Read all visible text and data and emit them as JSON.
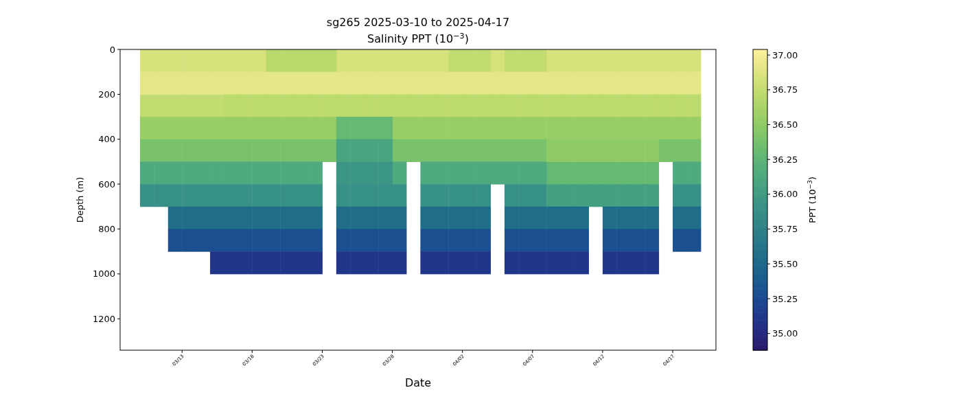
{
  "chart_data": {
    "type": "scatter",
    "title": "sg265 2025-03-10 to 2025-04-17",
    "subtitle": "Salinity PPT (10$^{−3}$)",
    "xlabel": "Date",
    "ylabel": "Depth (m)",
    "clabel": "PPT (10$^{−3}$)",
    "marker": "square",
    "xlim": [
      "2025-03-08T14:00",
      "2025-04-20T02:00"
    ],
    "xticks": [
      {
        "value": "2025-03-13",
        "label": "03/13"
      },
      {
        "value": "2025-03-18",
        "label": "03/18"
      },
      {
        "value": "2025-03-23",
        "label": "03/23"
      },
      {
        "value": "2025-03-28",
        "label": "03/28"
      },
      {
        "value": "2025-04-02",
        "label": "04/02"
      },
      {
        "value": "2025-04-07",
        "label": "04/07"
      },
      {
        "value": "2025-04-12",
        "label": "04/12"
      },
      {
        "value": "2025-04-17",
        "label": "04/17"
      }
    ],
    "ylim": [
      1340,
      0
    ],
    "yticks": [
      0,
      200,
      400,
      600,
      800,
      1000,
      1200
    ],
    "clim": [
      34.88,
      37.04
    ],
    "cticks": [
      {
        "value": 35,
        "label": "35.00"
      },
      35.25,
      {
        "value": 35.5,
        "label": "35.50"
      },
      35.75,
      {
        "value": 36,
        "label": "36.00"
      },
      36.25,
      {
        "value": 36.5,
        "label": "36.50"
      },
      36.75,
      {
        "value": 37,
        "label": "37.00"
      }
    ],
    "series": [
      {
        "x": [
          "2025-03-10T12:00",
          "2025-03-11T12:00",
          "2025-03-12T12:00",
          "2025-03-13T12:00",
          "2025-03-14T12:00",
          "2025-03-15T12:00",
          "2025-03-16T12:00",
          "2025-03-17T12:00",
          "2025-03-18T12:00",
          "2025-03-24T12:00",
          "2025-03-25T12:00",
          "2025-03-26T12:00",
          "2025-03-27T12:00",
          "2025-03-28T12:00",
          "2025-03-29T12:00",
          "2025-03-30T12:00",
          "2025-03-31T12:00",
          "2025-04-04T12:00",
          "2025-04-08T12:00",
          "2025-04-09T12:00",
          "2025-04-10T12:00",
          "2025-04-11T12:00",
          "2025-04-12T12:00",
          "2025-04-13T12:00",
          "2025-04-14T12:00",
          "2025-04-15T12:00",
          "2025-04-16T12:00",
          "2025-04-17T12:00",
          "2025-04-18T12:00"
        ],
        "values": [
          50,
          50,
          50,
          50,
          50,
          50,
          50,
          50,
          50,
          50,
          50,
          50,
          50,
          50,
          50,
          50,
          50,
          50,
          50,
          50,
          50,
          50,
          50,
          50,
          50,
          50,
          50,
          50,
          50
        ],
        "cvalues": [
          36.85,
          36.85,
          36.85,
          36.85,
          36.85,
          36.85,
          36.85,
          36.85,
          36.85,
          36.85,
          36.85,
          36.85,
          36.85,
          36.85,
          36.85,
          36.85,
          36.85,
          36.85,
          36.85,
          36.85,
          36.85,
          36.85,
          36.85,
          36.85,
          36.85,
          36.85,
          36.85,
          36.85,
          36.85
        ]
      },
      {
        "x": [
          "2025-03-19T12:00",
          "2025-03-20T12:00",
          "2025-03-21T12:00",
          "2025-03-22T12:00",
          "2025-03-23T12:00"
        ],
        "values": [
          50,
          50,
          50,
          50,
          50
        ],
        "cvalues": [
          36.7,
          36.7,
          36.7,
          36.7,
          36.7
        ]
      },
      {
        "x": [
          "2025-04-01T12:00",
          "2025-04-02T12:00",
          "2025-04-03T12:00",
          "2025-04-05T12:00",
          "2025-04-06T12:00",
          "2025-04-07T12:00",
          "2025-03-10T12:00",
          "2025-03-11T12:00",
          "2025-03-12T12:00",
          "2025-03-13T12:00",
          "2025-03-14T12:00",
          "2025-03-15T12:00"
        ],
        "values": [
          50,
          50,
          50,
          50,
          50,
          50,
          250,
          250,
          250,
          250,
          250,
          250
        ],
        "cvalues": [
          36.75,
          36.75,
          36.75,
          36.75,
          36.75,
          36.75,
          36.75,
          36.75,
          36.75,
          36.75,
          36.75,
          36.75
        ]
      },
      {
        "x": [
          "2025-03-10T12:00",
          "2025-03-11T12:00",
          "2025-03-12T12:00",
          "2025-03-13T12:00",
          "2025-03-14T12:00",
          "2025-03-15T12:00",
          "2025-03-16T12:00",
          "2025-03-17T12:00",
          "2025-03-18T12:00",
          "2025-03-19T12:00",
          "2025-03-20T12:00",
          "2025-03-21T12:00",
          "2025-03-22T12:00",
          "2025-03-23T12:00",
          "2025-03-24T12:00",
          "2025-03-25T12:00",
          "2025-03-26T12:00",
          "2025-03-27T12:00",
          "2025-03-28T12:00",
          "2025-03-29T12:00",
          "2025-03-30T12:00",
          "2025-03-31T12:00",
          "2025-04-01T12:00",
          "2025-04-02T12:00",
          "2025-04-03T12:00",
          "2025-04-04T12:00",
          "2025-04-05T12:00",
          "2025-04-06T12:00",
          "2025-04-07T12:00",
          "2025-04-08T12:00",
          "2025-04-09T12:00",
          "2025-04-10T12:00",
          "2025-04-11T12:00",
          "2025-04-12T12:00",
          "2025-04-13T12:00",
          "2025-04-14T12:00",
          "2025-04-15T12:00",
          "2025-04-16T12:00",
          "2025-04-17T12:00",
          "2025-04-18T12:00"
        ],
        "values": [
          150,
          150,
          150,
          150,
          150,
          150,
          150,
          150,
          150,
          150,
          150,
          150,
          150,
          150,
          150,
          150,
          150,
          150,
          150,
          150,
          150,
          150,
          150,
          150,
          150,
          150,
          150,
          150,
          150,
          150,
          150,
          150,
          150,
          150,
          150,
          150,
          150,
          150,
          150,
          150
        ],
        "cvalues": [
          36.92,
          36.92,
          36.92,
          36.92,
          36.92,
          36.92,
          36.92,
          36.92,
          36.92,
          36.92,
          36.92,
          36.92,
          36.92,
          36.92,
          36.92,
          36.92,
          36.92,
          36.92,
          36.92,
          36.92,
          36.92,
          36.92,
          36.92,
          36.92,
          36.92,
          36.92,
          36.92,
          36.92,
          36.92,
          36.92,
          36.92,
          36.92,
          36.92,
          36.92,
          36.92,
          36.92,
          36.92,
          36.92,
          36.92,
          36.92
        ]
      },
      {
        "x": [
          "2025-03-16T12:00",
          "2025-03-17T12:00",
          "2025-03-18T12:00",
          "2025-03-19T12:00",
          "2025-03-20T12:00",
          "2025-03-21T12:00",
          "2025-03-22T12:00",
          "2025-03-23T12:00",
          "2025-03-24T12:00",
          "2025-03-25T12:00",
          "2025-03-26T12:00",
          "2025-03-27T12:00",
          "2025-03-28T12:00",
          "2025-03-29T12:00",
          "2025-03-30T12:00",
          "2025-03-31T12:00",
          "2025-04-01T12:00",
          "2025-04-02T12:00",
          "2025-04-03T12:00",
          "2025-04-04T12:00",
          "2025-04-05T12:00",
          "2025-04-06T12:00",
          "2025-04-07T12:00",
          "2025-04-08T12:00",
          "2025-04-09T12:00",
          "2025-04-10T12:00",
          "2025-04-11T12:00",
          "2025-04-12T12:00",
          "2025-04-13T12:00",
          "2025-04-14T12:00",
          "2025-04-15T12:00",
          "2025-04-16T12:00",
          "2025-04-17T12:00",
          "2025-04-18T12:00"
        ],
        "values": [
          250,
          250,
          250,
          250,
          250,
          250,
          250,
          250,
          250,
          250,
          250,
          250,
          250,
          250,
          250,
          250,
          250,
          250,
          250,
          250,
          250,
          250,
          250,
          250,
          250,
          250,
          250,
          250,
          250,
          250,
          250,
          250,
          250,
          250
        ],
        "cvalues": [
          36.72,
          36.72,
          36.72,
          36.72,
          36.72,
          36.72,
          36.72,
          36.72,
          36.72,
          36.72,
          36.72,
          36.72,
          36.72,
          36.72,
          36.72,
          36.72,
          36.72,
          36.72,
          36.72,
          36.72,
          36.72,
          36.72,
          36.72,
          36.72,
          36.72,
          36.72,
          36.72,
          36.72,
          36.72,
          36.72,
          36.72,
          36.72,
          36.72,
          36.72
        ]
      },
      {
        "x": [
          "2025-03-10T12:00",
          "2025-03-11T12:00",
          "2025-03-12T12:00",
          "2025-03-13T12:00",
          "2025-03-14T12:00",
          "2025-03-15T12:00",
          "2025-03-16T12:00",
          "2025-03-17T12:00",
          "2025-03-18T12:00",
          "2025-03-19T12:00",
          "2025-03-20T12:00",
          "2025-03-21T12:00",
          "2025-03-22T12:00",
          "2025-03-23T12:00",
          "2025-03-28T12:00",
          "2025-03-29T12:00",
          "2025-03-30T12:00",
          "2025-03-31T12:00",
          "2025-04-01T12:00",
          "2025-04-02T12:00",
          "2025-04-03T12:00",
          "2025-04-04T12:00",
          "2025-04-05T12:00",
          "2025-04-06T12:00",
          "2025-04-07T12:00",
          "2025-04-08T12:00",
          "2025-04-09T12:00",
          "2025-04-10T12:00",
          "2025-04-11T12:00",
          "2025-04-12T12:00",
          "2025-04-13T12:00",
          "2025-04-14T12:00",
          "2025-04-15T12:00",
          "2025-04-16T12:00",
          "2025-04-17T12:00",
          "2025-04-18T12:00"
        ],
        "values": [
          350,
          350,
          350,
          350,
          350,
          350,
          350,
          350,
          350,
          350,
          350,
          350,
          350,
          350,
          350,
          350,
          350,
          350,
          350,
          350,
          350,
          350,
          350,
          350,
          350,
          350,
          350,
          350,
          350,
          350,
          350,
          350,
          350,
          350,
          350,
          350
        ],
        "cvalues": [
          36.55,
          36.55,
          36.55,
          36.55,
          36.55,
          36.55,
          36.55,
          36.55,
          36.55,
          36.55,
          36.55,
          36.55,
          36.55,
          36.55,
          36.55,
          36.55,
          36.55,
          36.55,
          36.55,
          36.55,
          36.55,
          36.55,
          36.55,
          36.55,
          36.55,
          36.55,
          36.55,
          36.55,
          36.55,
          36.55,
          36.55,
          36.55,
          36.55,
          36.55,
          36.55,
          36.55
        ]
      },
      {
        "x": [
          "2025-03-24T12:00",
          "2025-03-25T12:00",
          "2025-03-26T12:00",
          "2025-03-27T12:00",
          "2025-04-08T12:00",
          "2025-04-09T12:00",
          "2025-04-10T12:00",
          "2025-04-11T12:00",
          "2025-04-12T12:00",
          "2025-04-13T12:00",
          "2025-04-14T12:00",
          "2025-04-15T12:00"
        ],
        "values": [
          350,
          350,
          350,
          350,
          550,
          550,
          550,
          550,
          550,
          550,
          550,
          550
        ],
        "cvalues": [
          36.3,
          36.3,
          36.3,
          36.3,
          36.3,
          36.3,
          36.3,
          36.3,
          36.3,
          36.3,
          36.3,
          36.3
        ]
      },
      {
        "x": [
          "2025-03-10T12:00",
          "2025-03-11T12:00",
          "2025-03-12T12:00",
          "2025-03-13T12:00",
          "2025-03-14T12:00",
          "2025-03-15T12:00",
          "2025-03-16T12:00",
          "2025-03-17T12:00",
          "2025-03-18T12:00",
          "2025-03-19T12:00",
          "2025-03-20T12:00",
          "2025-03-21T12:00",
          "2025-03-22T12:00",
          "2025-03-23T12:00",
          "2025-03-28T12:00",
          "2025-03-29T12:00",
          "2025-03-30T12:00",
          "2025-03-31T12:00",
          "2025-04-01T12:00",
          "2025-04-02T12:00",
          "2025-04-03T12:00",
          "2025-04-04T12:00",
          "2025-04-05T12:00",
          "2025-04-06T12:00",
          "2025-04-07T12:00",
          "2025-04-16T12:00",
          "2025-04-17T12:00",
          "2025-04-18T12:00"
        ],
        "values": [
          450,
          450,
          450,
          450,
          450,
          450,
          450,
          450,
          450,
          450,
          450,
          450,
          450,
          450,
          450,
          450,
          450,
          450,
          450,
          450,
          450,
          450,
          450,
          450,
          450,
          450,
          450,
          450
        ],
        "cvalues": [
          36.4,
          36.4,
          36.4,
          36.4,
          36.4,
          36.4,
          36.4,
          36.4,
          36.4,
          36.4,
          36.4,
          36.4,
          36.4,
          36.4,
          36.4,
          36.4,
          36.4,
          36.4,
          36.4,
          36.4,
          36.4,
          36.4,
          36.4,
          36.4,
          36.4,
          36.4,
          36.4,
          36.4
        ]
      },
      {
        "x": [
          "2025-03-24T12:00",
          "2025-03-25T12:00",
          "2025-03-26T12:00",
          "2025-03-27T12:00"
        ],
        "values": [
          450,
          450,
          450,
          450
        ],
        "cvalues": [
          36.1,
          36.1,
          36.1,
          36.1
        ]
      },
      {
        "x": [
          "2025-04-08T12:00",
          "2025-04-09T12:00",
          "2025-04-10T12:00",
          "2025-04-11T12:00",
          "2025-04-12T12:00",
          "2025-04-13T12:00",
          "2025-04-14T12:00",
          "2025-04-15T12:00"
        ],
        "values": [
          450,
          450,
          450,
          450,
          450,
          450,
          450,
          450
        ],
        "cvalues": [
          36.5,
          36.5,
          36.5,
          36.5,
          36.5,
          36.5,
          36.5,
          36.5
        ]
      },
      {
        "x": [
          "2025-03-10T12:00",
          "2025-03-11T12:00",
          "2025-03-12T12:00",
          "2025-03-13T12:00",
          "2025-03-14T12:00",
          "2025-03-15T12:00",
          "2025-03-16T12:00",
          "2025-03-17T12:00",
          "2025-03-18T12:00",
          "2025-03-19T12:00",
          "2025-03-20T12:00",
          "2025-03-21T12:00",
          "2025-03-22T12:00",
          "2025-03-28T12:00",
          "2025-03-30T12:00",
          "2025-03-31T12:00",
          "2025-04-01T12:00",
          "2025-04-02T12:00",
          "2025-04-03T12:00",
          "2025-04-04T12:00",
          "2025-04-05T12:00",
          "2025-04-06T12:00",
          "2025-04-07T12:00",
          "2025-04-17T12:00",
          "2025-04-18T12:00"
        ],
        "values": [
          550,
          550,
          550,
          550,
          550,
          550,
          550,
          550,
          550,
          550,
          550,
          550,
          550,
          550,
          550,
          550,
          550,
          550,
          550,
          550,
          550,
          550,
          550,
          550,
          550
        ],
        "cvalues": [
          36.15,
          36.15,
          36.15,
          36.15,
          36.15,
          36.15,
          36.15,
          36.15,
          36.15,
          36.15,
          36.15,
          36.15,
          36.15,
          36.15,
          36.15,
          36.15,
          36.15,
          36.15,
          36.15,
          36.15,
          36.15,
          36.15,
          36.15,
          36.15,
          36.15
        ]
      },
      {
        "x": [
          "2025-03-24T12:00",
          "2025-03-25T12:00",
          "2025-03-26T12:00",
          "2025-03-27T12:00"
        ],
        "values": [
          550,
          550,
          550,
          550
        ],
        "cvalues": [
          35.95,
          35.95,
          35.95,
          35.95
        ]
      },
      {
        "x": [
          "2025-03-10T12:00",
          "2025-03-11T12:00",
          "2025-03-12T12:00",
          "2025-03-13T12:00",
          "2025-03-14T12:00",
          "2025-03-15T12:00",
          "2025-03-16T12:00",
          "2025-03-17T12:00",
          "2025-03-18T12:00",
          "2025-03-19T12:00",
          "2025-03-20T12:00",
          "2025-03-21T12:00",
          "2025-03-22T12:00",
          "2025-03-24T12:00",
          "2025-03-25T12:00",
          "2025-03-26T12:00",
          "2025-03-27T12:00",
          "2025-03-28T12:00",
          "2025-03-30T12:00",
          "2025-03-31T12:00",
          "2025-04-01T12:00",
          "2025-04-02T12:00",
          "2025-04-03T12:00",
          "2025-04-05T12:00",
          "2025-04-06T12:00",
          "2025-04-07T12:00",
          "2025-04-17T12:00",
          "2025-04-18T12:00"
        ],
        "values": [
          650,
          650,
          650,
          650,
          650,
          650,
          650,
          650,
          650,
          650,
          650,
          650,
          650,
          650,
          650,
          650,
          650,
          650,
          650,
          650,
          650,
          650,
          650,
          650,
          650,
          650,
          650,
          650
        ],
        "cvalues": [
          35.9,
          35.9,
          35.9,
          35.9,
          35.9,
          35.9,
          35.9,
          35.9,
          35.9,
          35.9,
          35.9,
          35.9,
          35.9,
          35.9,
          35.9,
          35.9,
          35.9,
          35.9,
          35.9,
          35.9,
          35.9,
          35.9,
          35.9,
          35.9,
          35.9,
          35.9,
          35.9,
          35.9
        ]
      },
      {
        "x": [
          "2025-04-08T12:00",
          "2025-04-09T12:00",
          "2025-04-10T12:00",
          "2025-04-11T12:00",
          "2025-04-12T12:00",
          "2025-04-13T12:00",
          "2025-04-14T12:00",
          "2025-04-15T12:00"
        ],
        "values": [
          650,
          650,
          650,
          650,
          650,
          650,
          650,
          650
        ],
        "cvalues": [
          36.05,
          36.05,
          36.05,
          36.05,
          36.05,
          36.05,
          36.05,
          36.05
        ]
      },
      {
        "x": [
          "2025-03-12T12:00",
          "2025-03-13T12:00",
          "2025-03-14T12:00",
          "2025-03-15T12:00",
          "2025-03-16T12:00",
          "2025-03-17T12:00",
          "2025-03-18T12:00",
          "2025-03-19T12:00",
          "2025-03-20T12:00",
          "2025-03-21T12:00",
          "2025-03-22T12:00",
          "2025-03-24T12:00",
          "2025-03-25T12:00",
          "2025-03-26T12:00",
          "2025-03-27T12:00",
          "2025-03-28T12:00",
          "2025-03-30T12:00",
          "2025-03-31T12:00",
          "2025-04-01T12:00",
          "2025-04-02T12:00",
          "2025-04-03T12:00",
          "2025-04-05T12:00",
          "2025-04-06T12:00",
          "2025-04-07T12:00",
          "2025-04-08T12:00",
          "2025-04-09T12:00",
          "2025-04-10T12:00",
          "2025-04-12T12:00",
          "2025-04-13T12:00",
          "2025-04-14T12:00",
          "2025-04-15T12:00",
          "2025-04-17T12:00",
          "2025-04-18T12:00"
        ],
        "values": [
          750,
          750,
          750,
          750,
          750,
          750,
          750,
          750,
          750,
          750,
          750,
          750,
          750,
          750,
          750,
          750,
          750,
          750,
          750,
          750,
          750,
          750,
          750,
          750,
          750,
          750,
          750,
          750,
          750,
          750,
          750,
          750,
          750
        ],
        "cvalues": [
          35.55,
          35.55,
          35.55,
          35.55,
          35.55,
          35.55,
          35.55,
          35.55,
          35.55,
          35.55,
          35.55,
          35.55,
          35.55,
          35.55,
          35.55,
          35.55,
          35.55,
          35.55,
          35.55,
          35.55,
          35.55,
          35.55,
          35.55,
          35.55,
          35.55,
          35.55,
          35.55,
          35.55,
          35.55,
          35.55,
          35.55,
          35.55,
          35.55
        ]
      },
      {
        "x": [
          "2025-03-12T12:00",
          "2025-03-13T12:00",
          "2025-03-14T12:00",
          "2025-03-15T12:00",
          "2025-03-16T12:00",
          "2025-03-17T12:00",
          "2025-03-18T12:00",
          "2025-03-19T12:00",
          "2025-03-20T12:00",
          "2025-03-21T12:00",
          "2025-03-22T12:00",
          "2025-03-24T12:00",
          "2025-03-25T12:00",
          "2025-03-26T12:00",
          "2025-03-27T12:00",
          "2025-03-28T12:00",
          "2025-03-30T12:00",
          "2025-03-31T12:00",
          "2025-04-01T12:00",
          "2025-04-02T12:00",
          "2025-04-03T12:00",
          "2025-04-05T12:00",
          "2025-04-06T12:00",
          "2025-04-07T12:00",
          "2025-04-08T12:00",
          "2025-04-09T12:00",
          "2025-04-10T12:00",
          "2025-04-12T12:00",
          "2025-04-13T12:00",
          "2025-04-14T12:00",
          "2025-04-15T12:00",
          "2025-04-17T12:00",
          "2025-04-18T12:00"
        ],
        "values": [
          850,
          850,
          850,
          850,
          850,
          850,
          850,
          850,
          850,
          850,
          850,
          850,
          850,
          850,
          850,
          850,
          850,
          850,
          850,
          850,
          850,
          850,
          850,
          850,
          850,
          850,
          850,
          850,
          850,
          850,
          850,
          850,
          850
        ],
        "cvalues": [
          35.3,
          35.3,
          35.3,
          35.3,
          35.3,
          35.3,
          35.3,
          35.3,
          35.3,
          35.3,
          35.3,
          35.3,
          35.3,
          35.3,
          35.3,
          35.3,
          35.3,
          35.3,
          35.3,
          35.3,
          35.3,
          35.3,
          35.3,
          35.3,
          35.3,
          35.3,
          35.3,
          35.3,
          35.3,
          35.3,
          35.3,
          35.3,
          35.3
        ]
      },
      {
        "x": [
          "2025-03-15T12:00",
          "2025-03-16T12:00",
          "2025-03-17T12:00",
          "2025-03-18T12:00",
          "2025-03-19T12:00",
          "2025-03-20T12:00",
          "2025-03-21T12:00",
          "2025-03-22T12:00",
          "2025-03-24T12:00",
          "2025-03-25T12:00",
          "2025-03-26T12:00",
          "2025-03-27T12:00",
          "2025-03-28T12:00",
          "2025-03-30T12:00",
          "2025-03-31T12:00",
          "2025-04-01T12:00",
          "2025-04-02T12:00",
          "2025-04-03T12:00",
          "2025-04-05T12:00",
          "2025-04-06T12:00",
          "2025-04-07T12:00",
          "2025-04-08T12:00",
          "2025-04-09T12:00",
          "2025-04-10T12:00",
          "2025-04-12T12:00",
          "2025-04-13T12:00",
          "2025-04-14T12:00",
          "2025-04-15T12:00"
        ],
        "values": [
          950,
          950,
          950,
          950,
          950,
          950,
          950,
          950,
          950,
          950,
          950,
          950,
          950,
          950,
          950,
          950,
          950,
          950,
          950,
          950,
          950,
          950,
          950,
          950,
          950,
          950,
          950,
          950
        ],
        "cvalues": [
          35.1,
          35.1,
          35.1,
          35.1,
          35.1,
          35.1,
          35.1,
          35.1,
          35.1,
          35.1,
          35.1,
          35.1,
          35.1,
          35.1,
          35.1,
          35.1,
          35.1,
          35.1,
          35.1,
          35.1,
          35.1,
          35.1,
          35.1,
          35.1,
          35.1,
          35.1,
          35.1,
          35.1
        ]
      }
    ]
  }
}
